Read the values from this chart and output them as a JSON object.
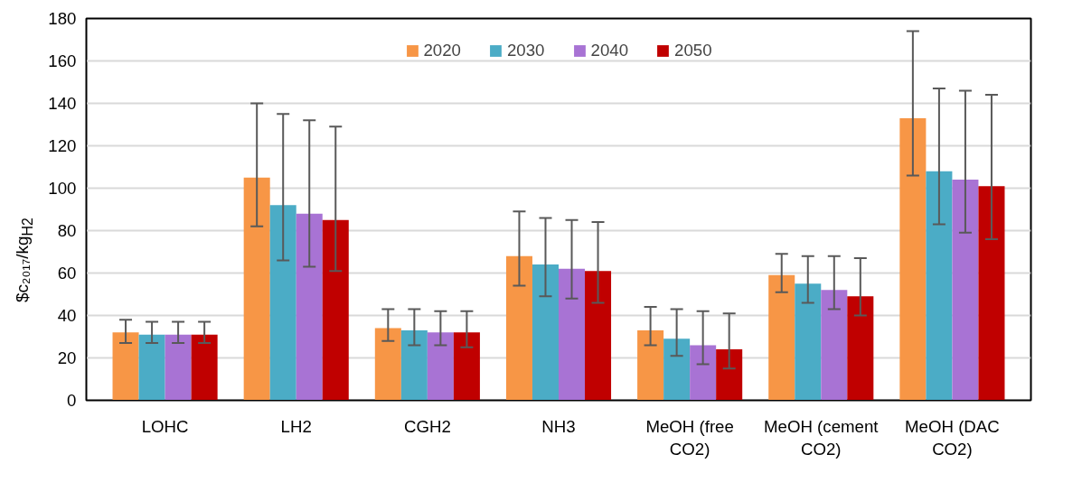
{
  "chart_data": {
    "type": "bar",
    "ylabel": "$c₂₀₁₇/kg$_{H2}$",
    "categories": [
      "LOHC",
      "LH2",
      "CGH2",
      "NH3",
      "MeOH (free CO2)",
      "MeOH (cement CO2)",
      "MeOH (DAC CO2)"
    ],
    "series": [
      {
        "name": "2020",
        "color": "#f79646",
        "values": [
          32,
          105,
          34,
          68,
          33,
          59,
          133
        ],
        "errors": [
          [
            27,
            38
          ],
          [
            82,
            140
          ],
          [
            28,
            43
          ],
          [
            54,
            89
          ],
          [
            26,
            44
          ],
          [
            51,
            69
          ],
          [
            106,
            174
          ]
        ]
      },
      {
        "name": "2030",
        "color": "#4bacc6",
        "values": [
          31,
          92,
          33,
          64,
          29,
          55,
          108
        ],
        "errors": [
          [
            27,
            37
          ],
          [
            66,
            135
          ],
          [
            26,
            43
          ],
          [
            49,
            86
          ],
          [
            21,
            43
          ],
          [
            46,
            68
          ],
          [
            83,
            147
          ]
        ]
      },
      {
        "name": "2040",
        "color": "#a873d4",
        "values": [
          31,
          88,
          32,
          62,
          26,
          52,
          104
        ],
        "errors": [
          [
            27,
            37
          ],
          [
            63,
            132
          ],
          [
            26,
            42
          ],
          [
            48,
            85
          ],
          [
            17,
            42
          ],
          [
            43,
            68
          ],
          [
            79,
            146
          ]
        ]
      },
      {
        "name": "2050",
        "color": "#c00000",
        "values": [
          31,
          85,
          32,
          61,
          24,
          49,
          101
        ],
        "errors": [
          [
            27,
            37
          ],
          [
            61,
            129
          ],
          [
            25,
            42
          ],
          [
            46,
            84
          ],
          [
            15,
            41
          ],
          [
            40,
            67
          ],
          [
            76,
            144
          ]
        ]
      }
    ],
    "ylim": [
      0,
      180
    ],
    "yticks": [
      0,
      20,
      40,
      60,
      80,
      100,
      120,
      140,
      160,
      180
    ],
    "grid": "y",
    "legend": "top"
  }
}
